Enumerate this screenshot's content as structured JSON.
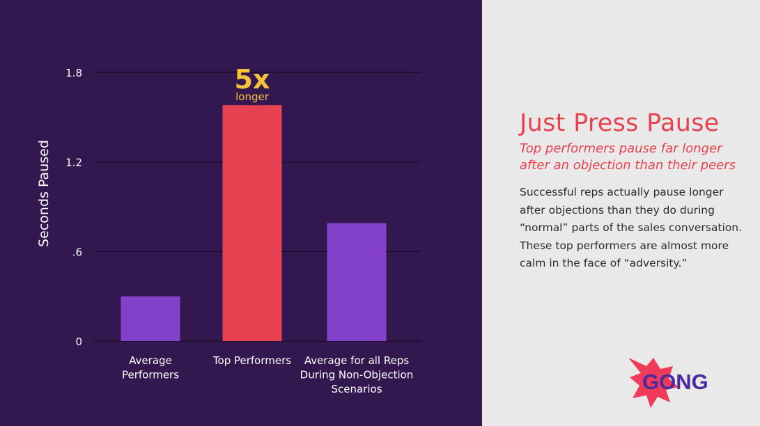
{
  "colors": {
    "chart_background": "#32184f",
    "text_panel_background": "#e9e9e9",
    "average_bar": "#8340c8",
    "top_performer_bar": "#e84152",
    "callout": "#f5c338",
    "heading": "#e8424f",
    "logo_burst": "#ef3a5a",
    "logo_text": "#4a2aa0",
    "gridline": "#1a0d2b",
    "chart_text": "#ffffff"
  },
  "chart_data": {
    "type": "bar",
    "categories": [
      [
        "Average",
        "Performers"
      ],
      [
        "Top Performers"
      ],
      [
        "Average for all Reps",
        "During Non-Objection",
        "Scenarios"
      ]
    ],
    "values": [
      0.3,
      1.58,
      0.79
    ],
    "bar_colors": [
      "#8340c8",
      "#e84152",
      "#8340c8"
    ],
    "ylabel": "Seconds Paused",
    "ylim": [
      0,
      1.8
    ],
    "yticks": [
      {
        "value": 0,
        "label": "0"
      },
      {
        "value": 0.6,
        "label": ".6"
      },
      {
        "value": 1.2,
        "label": "1.2"
      },
      {
        "value": 1.8,
        "label": "1.8"
      }
    ],
    "grid": true,
    "annotation": {
      "category_index": 1,
      "big": "5x",
      "small": "longer"
    }
  },
  "text_panel": {
    "title": "Just Press Pause",
    "subtitle_lines": [
      "Top performers pause far longer",
      "after an objection than their peers"
    ],
    "body_lines": [
      "Successful reps actually pause longer",
      "after objections than they do during",
      "“normal” parts of the sales conversation.",
      "These top performers are almost more",
      "calm in the face of “adversity.”"
    ]
  },
  "logo": {
    "text": "GONG",
    "icon": "starburst-icon"
  }
}
